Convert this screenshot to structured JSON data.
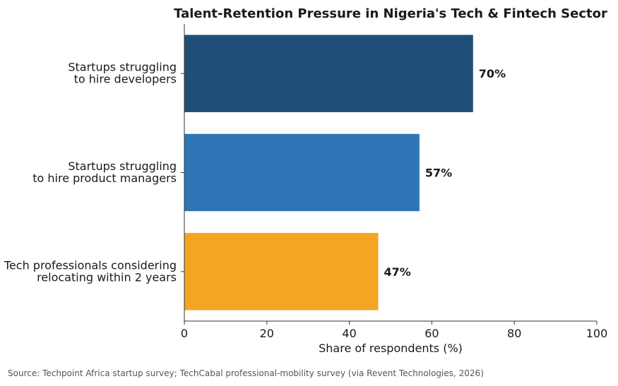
{
  "chart_data": {
    "type": "bar",
    "orientation": "horizontal",
    "title": "Talent-Retention Pressure in Nigeria's Tech & Fintech Sector",
    "xlabel": "Share of respondents (%)",
    "ylabel": "",
    "xlim": [
      0,
      100
    ],
    "xticks": [
      0,
      20,
      40,
      60,
      80,
      100
    ],
    "categories": [
      [
        "Startups struggling",
        "to hire developers"
      ],
      [
        "Startups struggling",
        "to hire product managers"
      ],
      [
        "Tech professionals considering",
        "relocating within 2 years"
      ]
    ],
    "values": [
      70,
      57,
      47
    ],
    "value_labels": [
      "70%",
      "57%",
      "47%"
    ],
    "colors": [
      "#1f4e79",
      "#2e75b6",
      "#f4a623"
    ],
    "grid": false,
    "legend": "none"
  },
  "source": "Source: Techpoint Africa startup survey; TechCabal professional-mobility survey (via Revent Technologies, 2026)"
}
